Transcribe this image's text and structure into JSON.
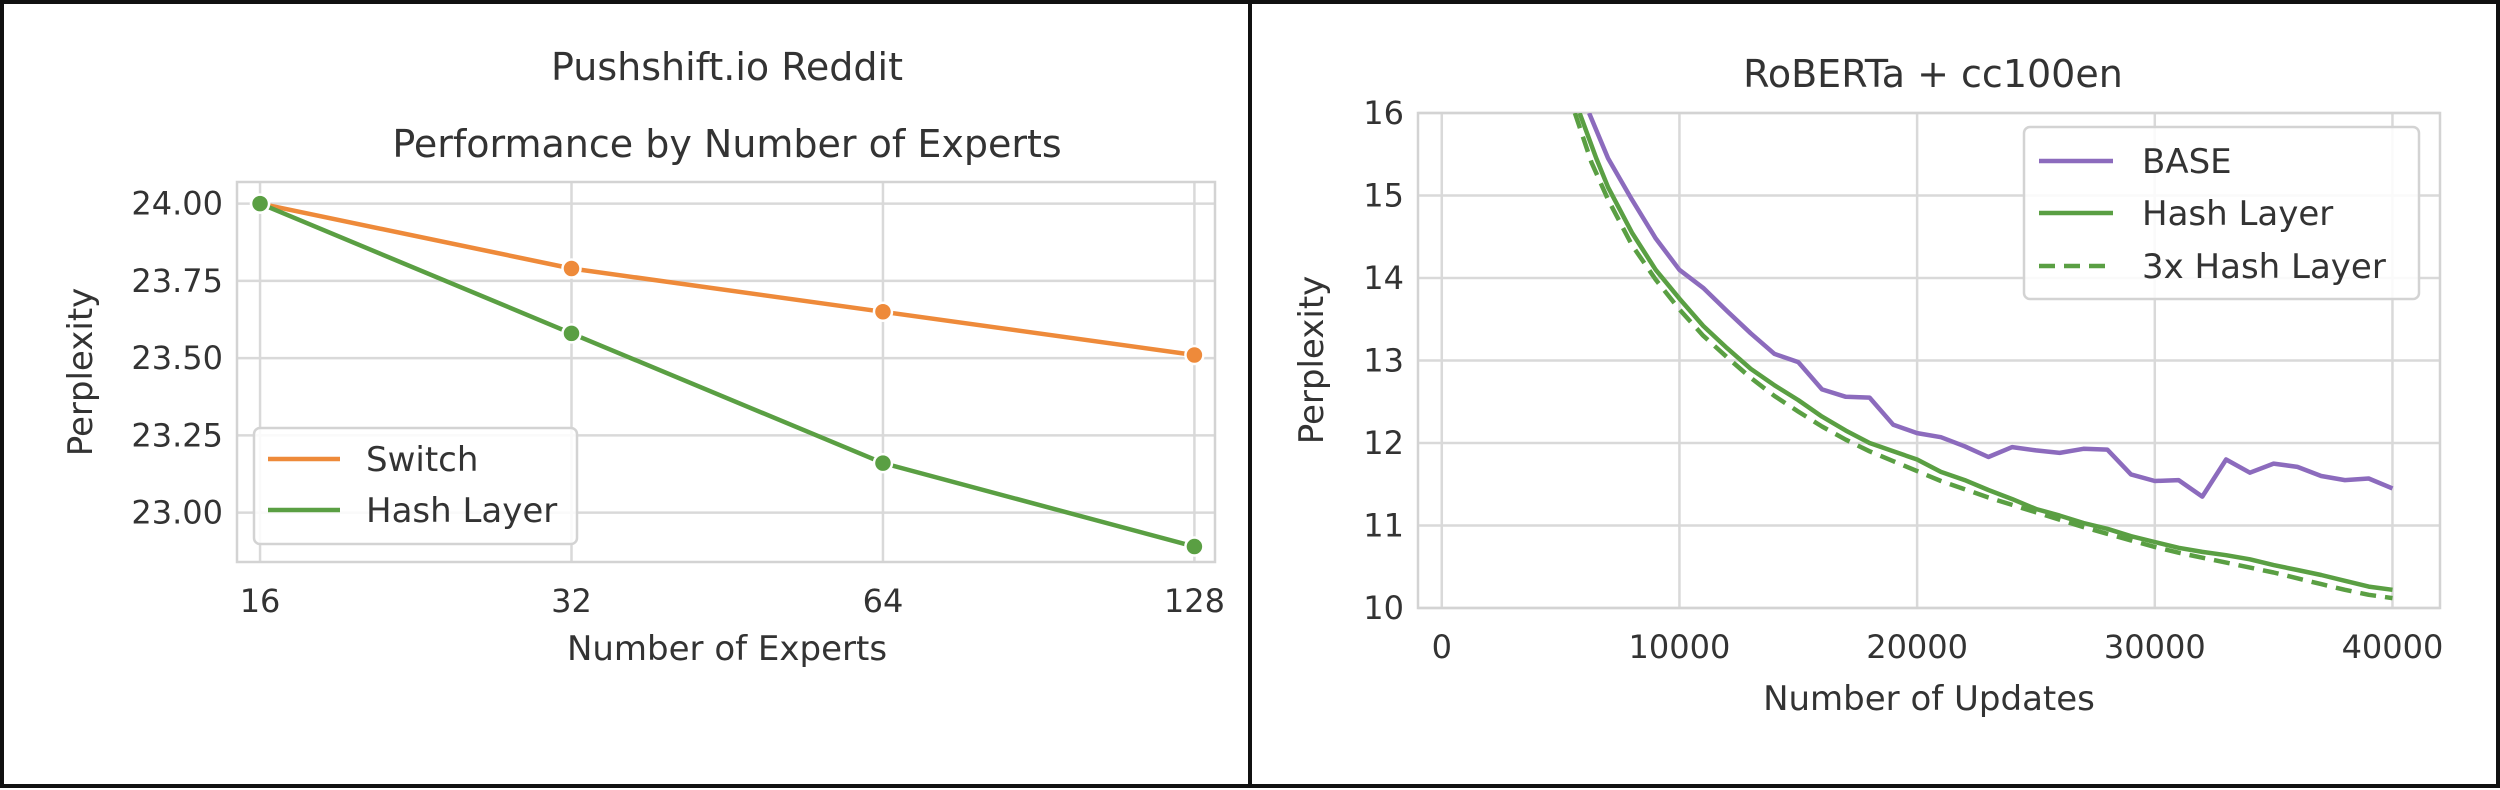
{
  "chart_data": [
    {
      "type": "line",
      "title": "Pushshift.io Reddit",
      "subtitle": "Performance by Number of Experts",
      "xlabel": "Number of Experts",
      "ylabel": "Perplexity",
      "x_scale": "log2",
      "x": [
        16,
        32,
        64,
        128
      ],
      "xticks": [
        "16",
        "32",
        "64",
        "128"
      ],
      "xlim": [
        15.2,
        134
      ],
      "ylim": [
        22.84,
        24.07
      ],
      "yticks": [
        23.0,
        23.25,
        23.5,
        23.75,
        24.0
      ],
      "ytick_labels": [
        "23.00",
        "23.25",
        "23.50",
        "23.75",
        "24.00"
      ],
      "grid": true,
      "legend": "lower-left",
      "markers": true,
      "series": [
        {
          "name": "Switch",
          "color": "#ee8a3a",
          "dash": false,
          "values": [
            24.0,
            23.79,
            23.65,
            23.51
          ]
        },
        {
          "name": "Hash Layer",
          "color": "#5a9f43",
          "dash": false,
          "values": [
            24.0,
            23.58,
            23.16,
            22.89
          ]
        }
      ]
    },
    {
      "type": "line",
      "title": "RoBERTa + cc100en",
      "xlabel": "Number of Updates",
      "ylabel": "Perplexity",
      "xlim": [
        -1000,
        42000
      ],
      "ylim": [
        10,
        16
      ],
      "xticks": [
        0,
        10000,
        20000,
        30000,
        40000
      ],
      "xtick_labels": [
        "0",
        "10000",
        "20000",
        "30000",
        "40000"
      ],
      "yticks": [
        10,
        11,
        12,
        13,
        14,
        15,
        16
      ],
      "ytick_labels": [
        "10",
        "11",
        "12",
        "13",
        "14",
        "15",
        "16"
      ],
      "grid": true,
      "legend": "upper-right",
      "markers": false,
      "series": [
        {
          "name": "BASE",
          "color": "#8c6bbd",
          "dash": false,
          "x": [
            6200,
            7000,
            8000,
            9000,
            10000,
            11000,
            12000,
            13000,
            14000,
            15000,
            16000,
            17000,
            18000,
            19000,
            20000,
            21000,
            22000,
            23000,
            24000,
            25000,
            26000,
            27000,
            28000,
            29000,
            30000,
            31000,
            32000,
            33000,
            34000,
            35000,
            36000,
            37000,
            38000,
            39000,
            40000
          ],
          "values": [
            16.0,
            15.45,
            14.95,
            14.48,
            14.1,
            13.88,
            13.6,
            13.33,
            13.08,
            12.98,
            12.65,
            12.56,
            12.55,
            12.22,
            12.12,
            12.07,
            11.96,
            11.83,
            11.95,
            11.91,
            11.88,
            11.93,
            11.92,
            11.62,
            11.54,
            11.55,
            11.35,
            11.8,
            11.64,
            11.75,
            11.71,
            11.6,
            11.55,
            11.57,
            11.45
          ]
        },
        {
          "name": "Hash Layer",
          "color": "#5a9f43",
          "dash": false,
          "x": [
            5800,
            6500,
            7000,
            8000,
            9000,
            10000,
            11000,
            12000,
            13000,
            14000,
            15000,
            16000,
            17000,
            18000,
            19000,
            20000,
            21000,
            22000,
            23000,
            24000,
            25000,
            26000,
            27000,
            28000,
            29000,
            30000,
            31000,
            32000,
            33000,
            34000,
            35000,
            36000,
            37000,
            38000,
            39000,
            40000
          ],
          "values": [
            16.0,
            15.45,
            15.1,
            14.55,
            14.1,
            13.75,
            13.42,
            13.15,
            12.9,
            12.7,
            12.52,
            12.32,
            12.15,
            12.0,
            11.9,
            11.8,
            11.65,
            11.55,
            11.43,
            11.32,
            11.2,
            11.12,
            11.03,
            10.96,
            10.87,
            10.8,
            10.73,
            10.68,
            10.64,
            10.59,
            10.52,
            10.46,
            10.4,
            10.33,
            10.26,
            10.22
          ]
        },
        {
          "name": "3x Hash Layer",
          "color": "#5a9f43",
          "dash": true,
          "x": [
            5600,
            6300,
            7000,
            8000,
            9000,
            10000,
            11000,
            12000,
            13000,
            14000,
            15000,
            16000,
            17000,
            18000,
            19000,
            20000,
            21000,
            22000,
            23000,
            24000,
            25000,
            26000,
            27000,
            28000,
            29000,
            30000,
            31000,
            32000,
            33000,
            34000,
            35000,
            36000,
            37000,
            38000,
            39000,
            40000
          ],
          "values": [
            16.0,
            15.4,
            14.95,
            14.4,
            13.98,
            13.62,
            13.3,
            13.04,
            12.79,
            12.57,
            12.38,
            12.2,
            12.04,
            11.9,
            11.78,
            11.66,
            11.54,
            11.44,
            11.34,
            11.25,
            11.16,
            11.07,
            10.98,
            10.9,
            10.82,
            10.74,
            10.67,
            10.61,
            10.55,
            10.49,
            10.43,
            10.36,
            10.29,
            10.22,
            10.16,
            10.12
          ]
        }
      ]
    }
  ]
}
